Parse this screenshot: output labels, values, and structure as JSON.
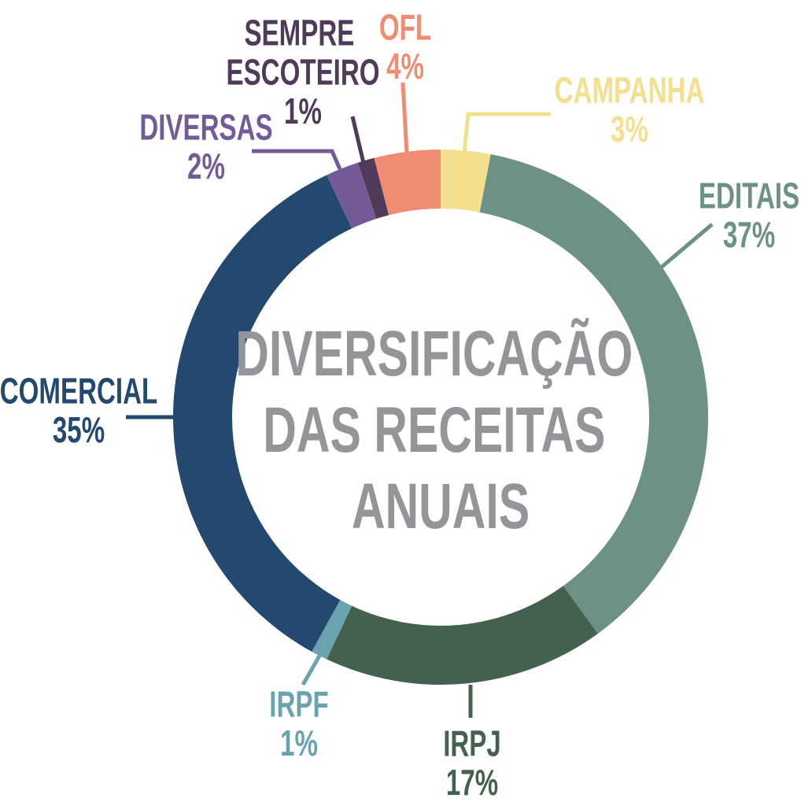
{
  "chart_data": {
    "type": "donut",
    "title": "DIVERSIFICAÇÃO DAS RECEITAS ANUAIS",
    "categories": [
      "CAMPANHA",
      "EDITAIS",
      "IRPJ",
      "IRPF",
      "COMERCIAL",
      "DIVERSAS",
      "SEMPRE ESCOTEIRO",
      "OFL"
    ],
    "values": [
      3,
      37,
      17,
      1,
      35,
      2,
      1,
      4
    ],
    "value_labels": [
      "3%",
      "37%",
      "17%",
      "1%",
      "35%",
      "2%",
      "1%",
      "4%"
    ],
    "colors": [
      "#f2e08f",
      "#6e9185",
      "#44604e",
      "#6aa3ad",
      "#234a6e",
      "#745b98",
      "#4f3b59",
      "#ef8c73"
    ]
  }
}
